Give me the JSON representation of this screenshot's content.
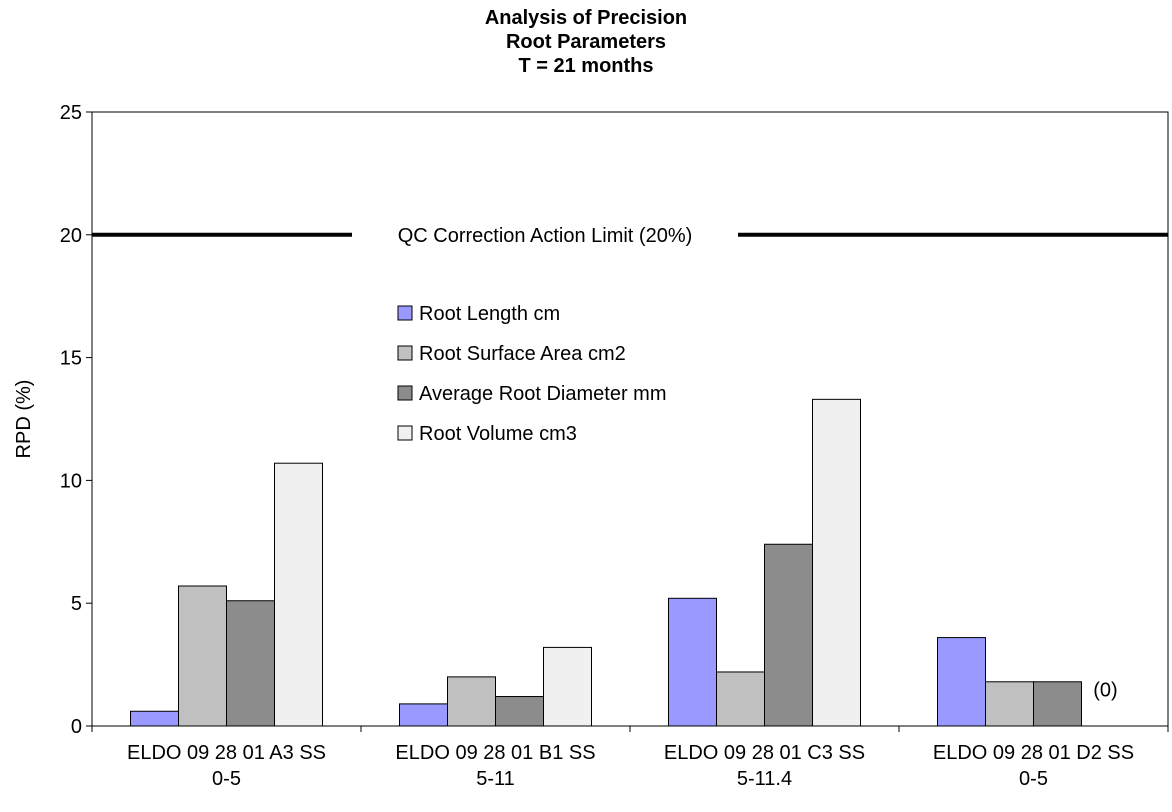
{
  "chart_data": {
    "type": "bar",
    "title": [
      "Analysis of Precision",
      "Root Parameters",
      "T = 21 months"
    ],
    "xlabel": "",
    "ylabel": "RPD (%)",
    "ylim": [
      0,
      25
    ],
    "yticks": [
      "0",
      "5",
      "10",
      "15",
      "20",
      "25"
    ],
    "grid": false,
    "legend_position": "center",
    "categories": [
      [
        "ELDO 09 28 01 A3 SS",
        "0-5"
      ],
      [
        "ELDO 09 28 01 B1 SS",
        "5-11"
      ],
      [
        "ELDO 09 28 01 C3 SS",
        "5-11.4"
      ],
      [
        "ELDO 09 28 01 D2 SS",
        "0-5"
      ]
    ],
    "series": [
      {
        "name": "Root Length cm",
        "color": "#9999ff",
        "values": [
          0.6,
          0.9,
          5.2,
          3.6
        ]
      },
      {
        "name": "Root Surface Area cm2",
        "color": "#c0c0c0",
        "values": [
          5.7,
          2.0,
          2.2,
          1.8
        ]
      },
      {
        "name": "Average Root Diameter mm",
        "color": "#8c8c8c",
        "values": [
          5.1,
          1.2,
          7.4,
          1.8
        ]
      },
      {
        "name": "Root Volume cm3",
        "color": "#f0f0f0",
        "values": [
          10.7,
          3.2,
          13.3,
          0
        ]
      }
    ],
    "reference_line": {
      "value": 20,
      "label": "QC Correction Action Limit (20%)"
    },
    "annotations": [
      {
        "text": "(0)",
        "category_index": 3,
        "series_index": 3
      }
    ]
  }
}
